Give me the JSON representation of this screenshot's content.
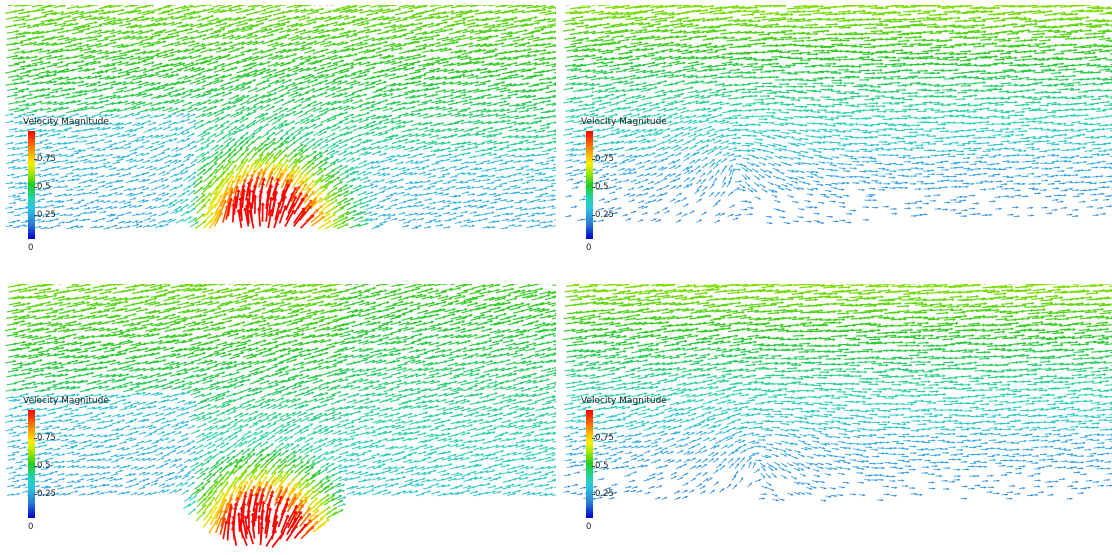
{
  "legend": {
    "title": "Velocity Magnitude",
    "ticks": [
      "0.75",
      "0.5",
      "0.25",
      "0"
    ]
  },
  "panels": [
    {
      "id": "top-left",
      "type": "source-flat"
    },
    {
      "id": "top-right",
      "type": "wake-flat"
    },
    {
      "id": "bottom-left",
      "type": "source-dip"
    },
    {
      "id": "bottom-right",
      "type": "wake-dip"
    }
  ],
  "colormap": {
    "low": "#0000cc",
    "mid": "#22cc22",
    "high": "#ff0000"
  }
}
